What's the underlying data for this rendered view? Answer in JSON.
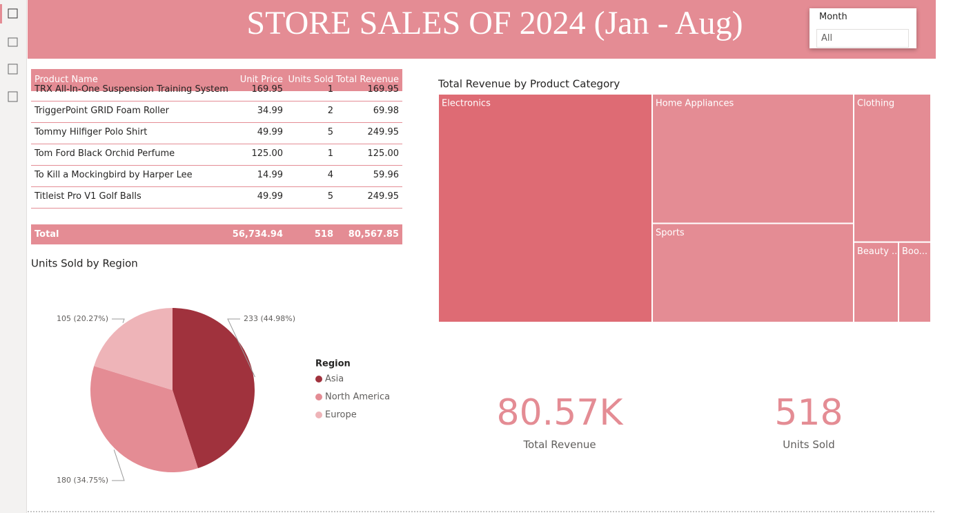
{
  "header": {
    "title": "STORE SALES OF 2024 (Jan - Aug)"
  },
  "slicer": {
    "label": "Month",
    "value": "All"
  },
  "table": {
    "columns": [
      "Product Name",
      "Unit Price",
      "Units Sold",
      "Total Revenue"
    ],
    "rows": [
      [
        "TRX All-In-One Suspension Training System",
        "169.95",
        "1",
        "169.95"
      ],
      [
        "TriggerPoint GRID Foam Roller",
        "34.99",
        "2",
        "69.98"
      ],
      [
        "Tommy Hilfiger Polo Shirt",
        "49.99",
        "5",
        "249.95"
      ],
      [
        "Tom Ford Black Orchid Perfume",
        "125.00",
        "1",
        "125.00"
      ],
      [
        "To Kill a Mockingbird by Harper Lee",
        "14.99",
        "4",
        "59.96"
      ],
      [
        "Titleist Pro V1 Golf Balls",
        "49.99",
        "5",
        "249.95"
      ]
    ],
    "total": [
      "Total",
      "56,734.94",
      "518",
      "80,567.85"
    ]
  },
  "chart_data": [
    {
      "type": "pie",
      "title": "Units Sold by Region",
      "legend_title": "Region",
      "categories": [
        "Asia",
        "North America",
        "Europe"
      ],
      "values": [
        233,
        180,
        105
      ],
      "value_labels": [
        "233 (44.98%)",
        "180 (34.75%)",
        "105 (20.27%)"
      ],
      "colors": [
        "#a0323d",
        "#e48c94",
        "#eeb4b8"
      ]
    },
    {
      "type": "treemap",
      "title": "Total Revenue by Product Category",
      "categories": [
        "Electronics",
        "Home Appliances",
        "Sports",
        "Clothing",
        "Beauty ...",
        "Boo..."
      ],
      "values": [
        34990,
        18670,
        14280,
        8196,
        2578,
        1864
      ],
      "colors": [
        "#de6b74",
        "#e48c94",
        "#e48c94",
        "#e48c94",
        "#e48c94",
        "#e48c94"
      ]
    }
  ],
  "cards": [
    {
      "value": "80.57K",
      "label": "Total Revenue"
    },
    {
      "value": "518",
      "label": "Units Sold"
    }
  ]
}
